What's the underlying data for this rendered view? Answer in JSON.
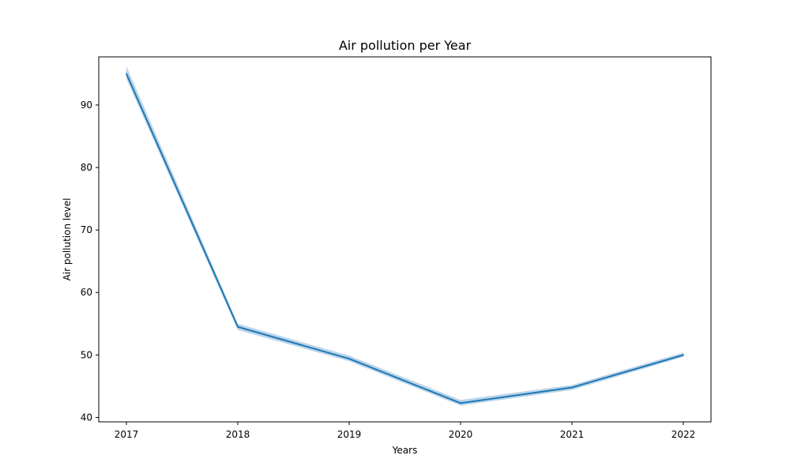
{
  "chart_data": {
    "type": "line",
    "title": "Air pollution per Year",
    "xlabel": "Years",
    "ylabel": "Air pollution level",
    "x": [
      "2017",
      "2018",
      "2019",
      "2020",
      "2021",
      "2022"
    ],
    "series": [
      {
        "values": [
          95.0,
          54.5,
          49.4,
          42.3,
          44.8,
          50.0
        ],
        "ci_lower": [
          94.2,
          54.0,
          49.0,
          41.9,
          44.4,
          49.7
        ],
        "ci_upper": [
          96.2,
          55.0,
          49.9,
          42.8,
          45.2,
          50.4
        ]
      }
    ],
    "yticks": [
      40,
      50,
      60,
      70,
      80,
      90
    ],
    "ylim": [
      39.3,
      97.7
    ],
    "grid": false,
    "colors": {
      "line": "#1f77b4",
      "band": "#aecde6"
    }
  }
}
